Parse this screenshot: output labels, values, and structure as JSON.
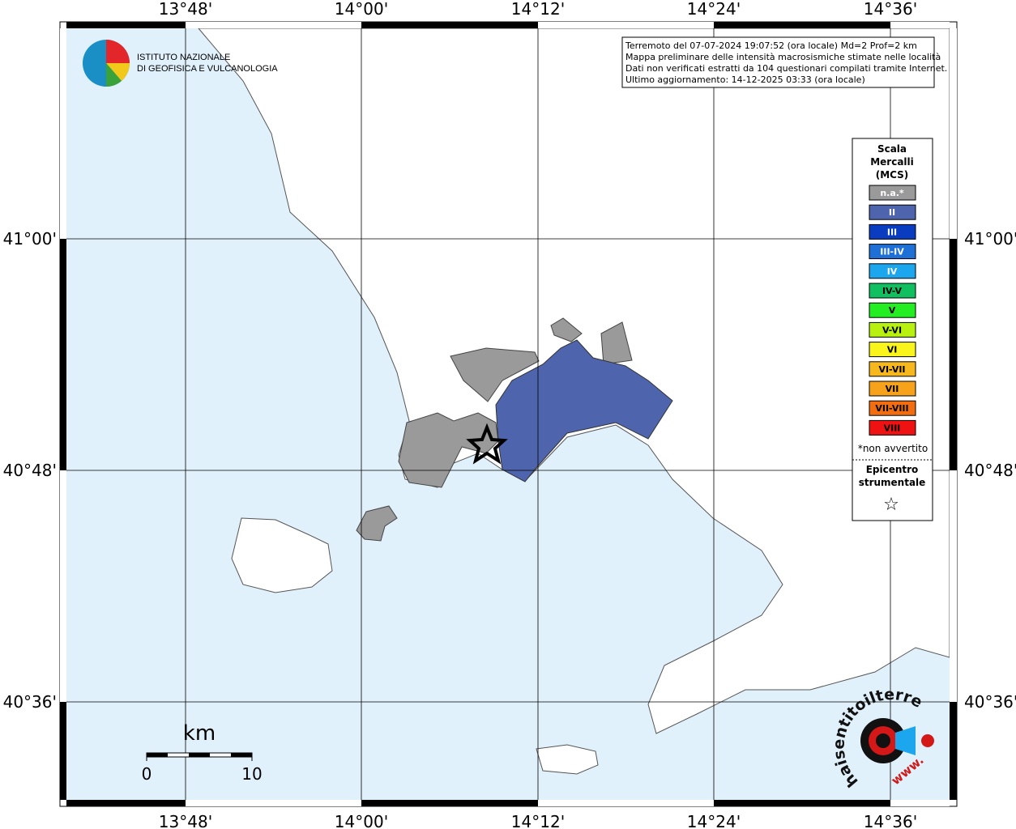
{
  "axes": {
    "longitudes": [
      "13°48'",
      "14°00'",
      "14°12'",
      "14°24'",
      "14°36'"
    ],
    "latitudes": [
      "41°00'",
      "40°48'",
      "40°36'"
    ]
  },
  "logo": {
    "line1": "ISTITUTO NAZIONALE",
    "line2": "DI GEOFISICA E VULCANOLOGIA"
  },
  "info": {
    "lines": [
      "Terremoto del 07-07-2024 19:07:52 (ora locale) Md=2 Prof=2 km",
      "Mappa preliminare delle intensità macrosismiche stimate nelle località",
      "Dati non verificati estratti da 104 questionari compilati tramite Internet.",
      "Ultimo aggiornamento: 14-12-2025 03:33 (ora locale)"
    ]
  },
  "legend": {
    "title": [
      "Scala",
      "Mercalli",
      "(MCS)"
    ],
    "items": [
      {
        "label": "n.a.*",
        "color": "#9a9a9a"
      },
      {
        "label": "II",
        "color": "#4e64ad"
      },
      {
        "label": "III",
        "color": "#0a3cc0"
      },
      {
        "label": "III-IV",
        "color": "#1e6fd6"
      },
      {
        "label": "IV",
        "color": "#1ca6ee"
      },
      {
        "label": "IV-V",
        "color": "#10c060"
      },
      {
        "label": "V",
        "color": "#22ee22"
      },
      {
        "label": "V-VI",
        "color": "#b8f010"
      },
      {
        "label": "VI",
        "color": "#f8f41c"
      },
      {
        "label": "VI-VII",
        "color": "#f6b81c"
      },
      {
        "label": "VII",
        "color": "#f6a21a"
      },
      {
        "label": "VII-VIII",
        "color": "#f26c10"
      },
      {
        "label": "VIII",
        "color": "#ee1212"
      }
    ],
    "note": "*non avvertito",
    "epicenter": [
      "Epicentro",
      "strumentale"
    ],
    "star": "☆"
  },
  "scale_bar": {
    "unit": "km",
    "start": "0",
    "end": "10"
  },
  "badge": {
    "site": "haisentitoilterremoto.it",
    "www": "www."
  }
}
